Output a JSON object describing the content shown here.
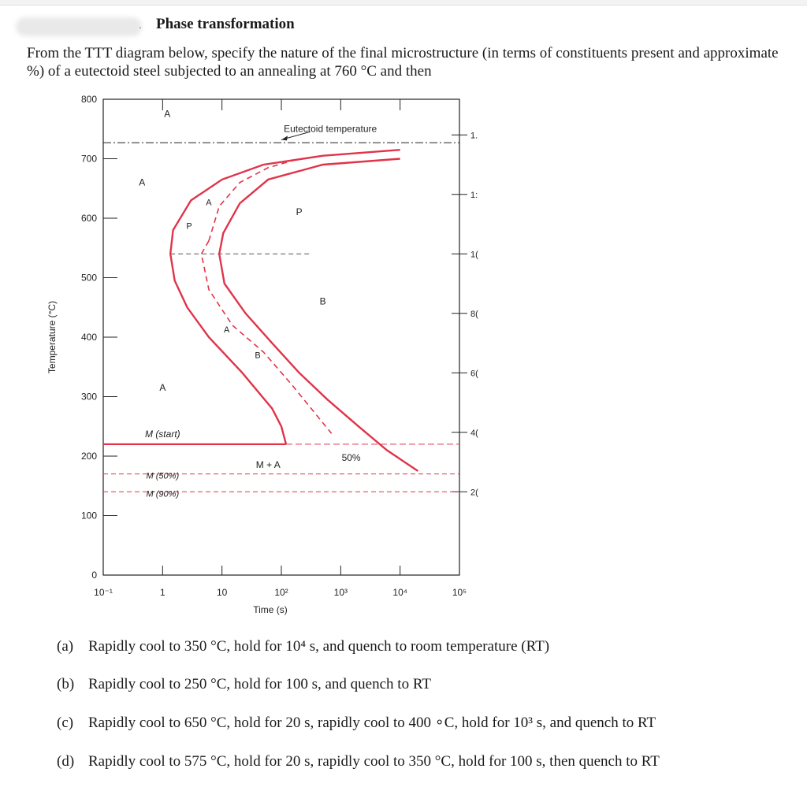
{
  "header": {
    "title": "Phase transformation",
    "intro": "From the TTT diagram below, specify the nature of the final microstructure (in terms of constituents present and approximate %) of a eutectoid steel subjected to an annealing at 760 °C and then"
  },
  "chart_data": {
    "type": "diagram",
    "ylabel": "Temperature (°C)",
    "xlabel": "Time (s)",
    "y_ticks": [
      "0",
      "100",
      "200",
      "300",
      "400",
      "500",
      "600",
      "700",
      "800"
    ],
    "x_ticks": [
      "10⁻¹",
      "1",
      "10",
      "10²",
      "10³",
      "10⁴",
      "10⁵"
    ],
    "right_ticks": [
      "1.",
      "1:",
      "1(",
      "8(",
      "6(",
      "4(",
      "2("
    ],
    "xlim": [
      0.1,
      100000
    ],
    "ylim": [
      0,
      800
    ],
    "x_scale": "log",
    "region_labels": {
      "austenite_top": "A",
      "austenite_left": "A",
      "austenite_low": "A",
      "austenite_mid1": "A",
      "austenite_mid2": "A",
      "pearlite_small": "P",
      "pearlite": "P",
      "bainite_small": "B",
      "bainite": "B",
      "martensite_austenite": "M + A",
      "fifty_percent": "50%"
    },
    "annotations": {
      "eutectoid": "Eutectoid temperature",
      "m_start": "M (start)",
      "m_50": "M (50%)",
      "m_90": "M (90%)"
    },
    "eutectoid_temp": 727,
    "m_start_temp": 220,
    "m_50_temp": 170,
    "m_90_temp": 140,
    "nose_split_temp": 540,
    "start_curve": [
      [
        10000,
        715
      ],
      [
        500,
        705
      ],
      [
        50,
        690
      ],
      [
        10,
        665
      ],
      [
        3,
        630
      ],
      [
        1.5,
        580
      ],
      [
        1.35,
        540
      ],
      [
        1.6,
        495
      ],
      [
        2.6,
        450
      ],
      [
        6,
        400
      ],
      [
        22,
        340
      ],
      [
        70,
        280
      ],
      [
        100,
        250
      ],
      [
        120,
        220
      ]
    ],
    "finish_curve": [
      [
        10000,
        700
      ],
      [
        500,
        690
      ],
      [
        60,
        665
      ],
      [
        20,
        625
      ],
      [
        10.5,
        575
      ],
      [
        9,
        540
      ],
      [
        11,
        490
      ],
      [
        25,
        440
      ],
      [
        70,
        390
      ],
      [
        200,
        340
      ],
      [
        600,
        295
      ],
      [
        2000,
        250
      ],
      [
        6000,
        210
      ],
      [
        20000,
        175
      ]
    ],
    "half_curve": [
      [
        6,
        562
      ],
      [
        4.5,
        540
      ],
      [
        6,
        480
      ],
      [
        15,
        420
      ],
      [
        50,
        375
      ],
      [
        150,
        320
      ],
      [
        700,
        238
      ]
    ],
    "half_curve_upper": [
      [
        6,
        562
      ],
      [
        9,
        620
      ],
      [
        20,
        660
      ],
      [
        60,
        685
      ],
      [
        200,
        700
      ]
    ]
  },
  "questions": [
    {
      "label": "(a)",
      "text": "Rapidly cool to 350 °C, hold for 10⁴ s, and quench to room temperature (RT)"
    },
    {
      "label": "(b)",
      "text": "Rapidly cool to 250 °C, hold for 100 s, and quench to RT"
    },
    {
      "label": "(c)",
      "text": "Rapidly cool to 650 °C, hold for 20 s, rapidly cool to 400 ∘C, hold for 10³ s, and quench to RT"
    },
    {
      "label": "(d)",
      "text": "Rapidly cool to 575 °C, hold for 20 s, rapidly cool to 350 °C, hold for 100 s, then quench to RT"
    }
  ],
  "colors": {
    "curve": "#e0344a",
    "dash": "#e0344a",
    "black": "#222222",
    "dashed_gray": "#555555"
  }
}
